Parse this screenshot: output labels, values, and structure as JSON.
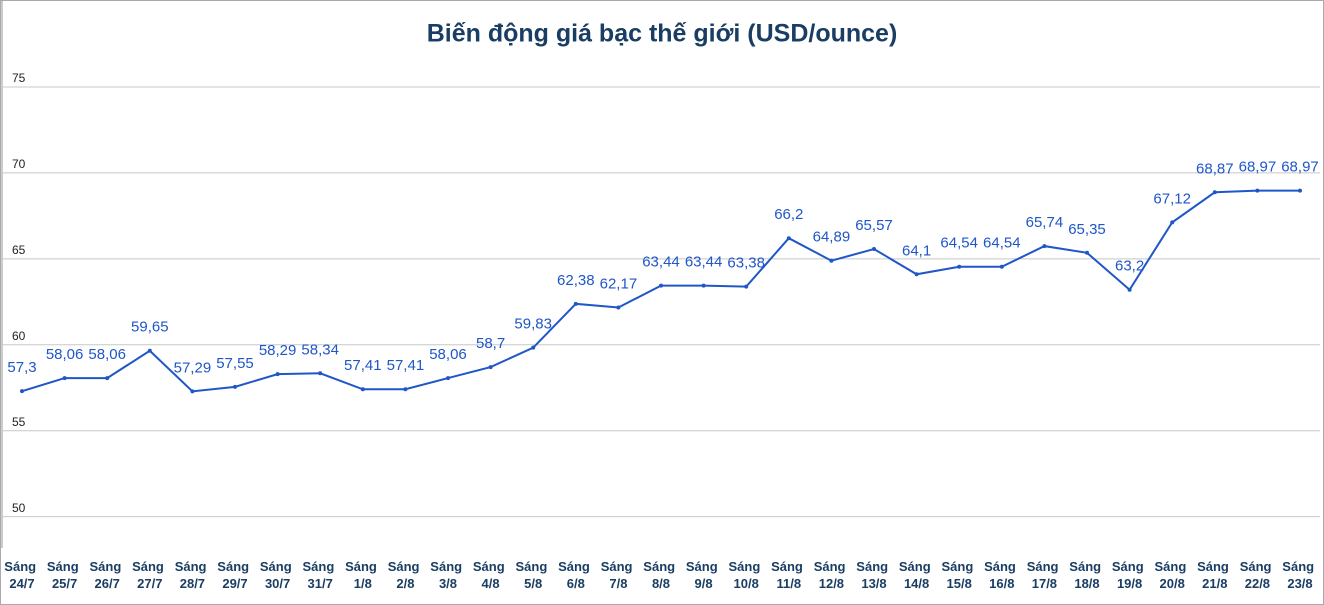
{
  "chart_data": {
    "type": "line",
    "title": "Biến động giá bạc thế giới (USD/ounce)",
    "categories": [
      "Sáng 24/7",
      "Sáng 25/7",
      "Sáng 26/7",
      "Sáng 27/7",
      "Sáng 28/7",
      "Sáng 29/7",
      "Sáng 30/7",
      "Sáng 31/7",
      "Sáng 1/8",
      "Sáng 2/8",
      "Sáng 3/8",
      "Sáng 4/8",
      "Sáng 5/8",
      "Sáng 6/8",
      "Sáng 7/8",
      "Sáng 8/8",
      "Sáng 9/8",
      "Sáng 10/8",
      "Sáng 11/8",
      "Sáng 12/8",
      "Sáng 13/8",
      "Sáng 14/8",
      "Sáng 15/8",
      "Sáng 16/8",
      "Sáng 17/8",
      "Sáng 18/8",
      "Sáng 19/8",
      "Sáng 20/8",
      "Sáng 21/8",
      "Sáng 22/8",
      "Sáng 23/8"
    ],
    "values": [
      57.3,
      58.06,
      58.06,
      59.65,
      57.29,
      57.55,
      58.29,
      58.34,
      57.41,
      57.41,
      58.06,
      58.7,
      59.83,
      62.38,
      62.17,
      63.44,
      63.44,
      63.38,
      66.2,
      64.89,
      65.57,
      64.1,
      64.54,
      64.54,
      65.74,
      65.35,
      63.2,
      67.12,
      68.87,
      68.97,
      68.97
    ],
    "value_labels": [
      "57,3",
      "58,06",
      "58,06",
      "59,65",
      "57,29",
      "57,55",
      "58,29",
      "58,34",
      "57,41",
      "57,41",
      "58,06",
      "58,7",
      "59,83",
      "62,38",
      "62,17",
      "63,44",
      "63,44",
      "63,38",
      "66,2",
      "64,89",
      "65,57",
      "64,1",
      "64,54",
      "64,54",
      "65,74",
      "65,35",
      "63,2",
      "67,12",
      "68,87",
      "68,97",
      "68,97"
    ],
    "color": "#1f56c8",
    "ylim": [
      48,
      80
    ],
    "yticks": [
      50,
      55,
      60,
      65,
      70,
      75
    ],
    "grid": true
  }
}
